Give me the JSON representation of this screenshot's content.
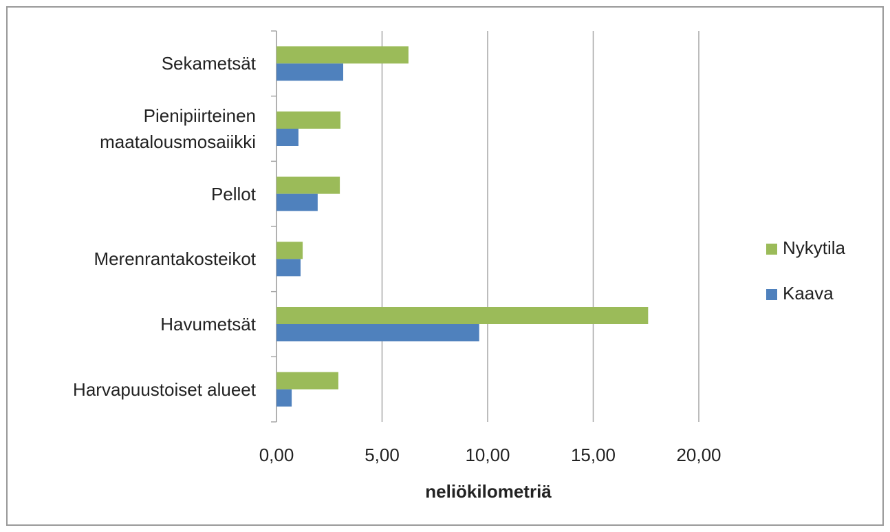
{
  "chart_data": {
    "type": "hbar",
    "x_label": "neliökilometriä",
    "categories": [
      "Sekametsät",
      "Pienipiirteinen maatalousmosaiikki",
      "Pellot",
      "Merenrantakosteikot",
      "Havumetsät",
      "Harvapuustoiset alueet"
    ],
    "series": [
      {
        "name": "Nykytila",
        "color": "#9bbb59",
        "values": [
          6.25,
          3.03,
          3.0,
          1.24,
          17.6,
          2.93
        ]
      },
      {
        "name": "Kaava",
        "color": "#4f81bd",
        "values": [
          3.16,
          1.04,
          1.95,
          1.14,
          9.6,
          0.72
        ]
      }
    ],
    "xlim": [
      0,
      20
    ],
    "xticks": [
      {
        "value": 0,
        "label": "0,00"
      },
      {
        "value": 5,
        "label": "5,00"
      },
      {
        "value": 10,
        "label": "10,00"
      },
      {
        "value": 15,
        "label": "15,00"
      },
      {
        "value": 20,
        "label": "20,00"
      }
    ],
    "grid": true,
    "legend": "right"
  }
}
